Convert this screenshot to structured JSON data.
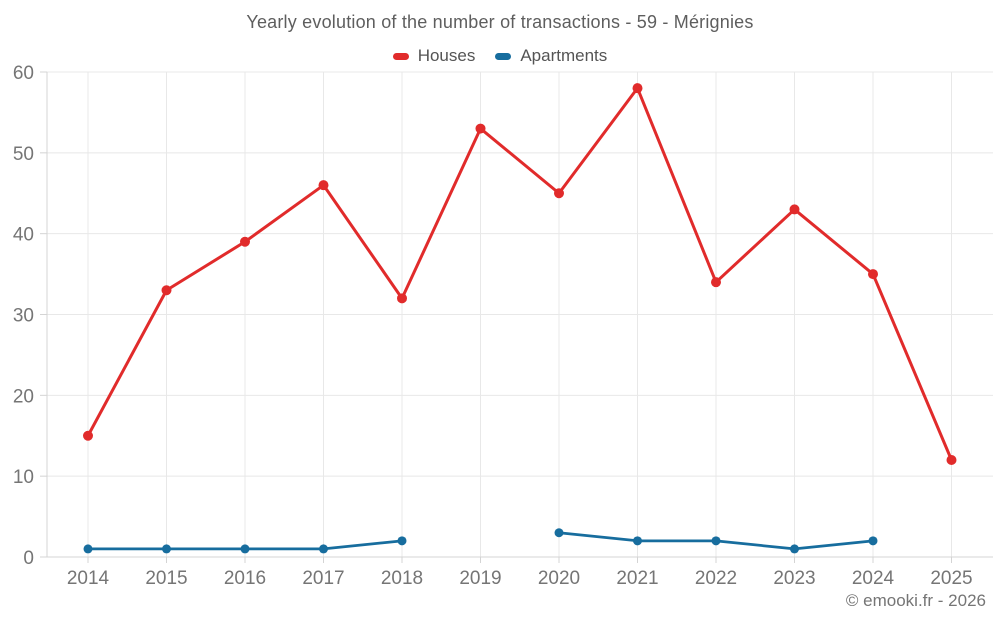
{
  "header": {
    "title": "Yearly evolution of the number of transactions - 59 - Mérignies"
  },
  "footer": {
    "copyright": "© emooki.fr - 2026"
  },
  "colors": {
    "houses": "#e12b2b",
    "apartments": "#176d9e",
    "grid": "#e8e8e8",
    "axis": "#d4d4d4",
    "tick_text": "#757575",
    "title_text": "#5e5e5e",
    "background": "#ffffff"
  },
  "chart_data": {
    "type": "line",
    "title": "Yearly evolution of the number of transactions - 59 - Mérignies",
    "xlabel": "",
    "ylabel": "",
    "x": [
      2014,
      2015,
      2016,
      2017,
      2018,
      2019,
      2020,
      2021,
      2022,
      2023,
      2024,
      2025
    ],
    "series": [
      {
        "name": "Houses",
        "color": "#e12b2b",
        "values": [
          15,
          33,
          39,
          46,
          32,
          53,
          45,
          58,
          34,
          43,
          35,
          12
        ]
      },
      {
        "name": "Apartments",
        "color": "#176d9e",
        "values": [
          1,
          1,
          1,
          1,
          2,
          null,
          3,
          2,
          2,
          1,
          2,
          null
        ]
      }
    ],
    "ylim": [
      0,
      60
    ],
    "yticks": [
      0,
      10,
      20,
      30,
      40,
      50,
      60
    ],
    "grid": true,
    "legend_position": "top",
    "annotations": []
  }
}
